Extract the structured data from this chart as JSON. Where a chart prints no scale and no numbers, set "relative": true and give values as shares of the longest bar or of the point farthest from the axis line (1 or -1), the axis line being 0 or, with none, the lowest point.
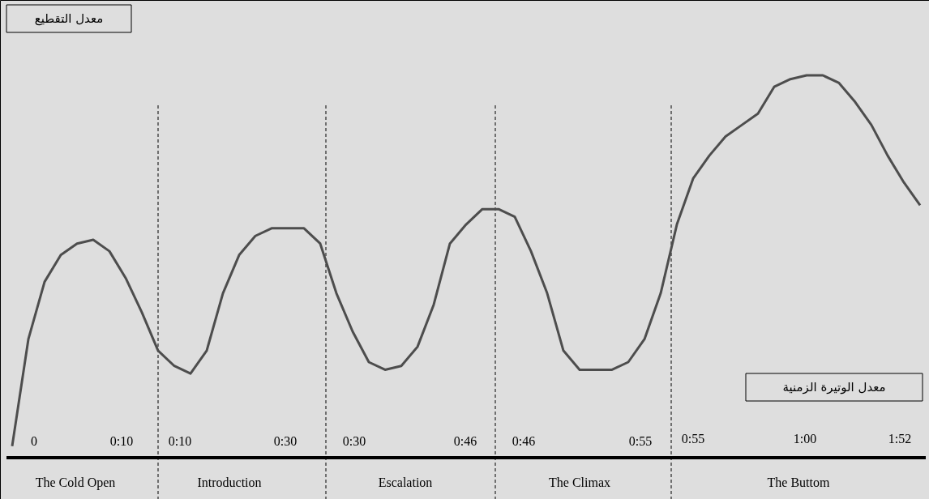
{
  "chart_data": {
    "type": "line",
    "relative": true,
    "marker": "none",
    "line_style": "solid",
    "categories": [
      null,
      null,
      null,
      null,
      null,
      null,
      null,
      null,
      null,
      null,
      null,
      null,
      null,
      null,
      null,
      null,
      null,
      null,
      null,
      null,
      null,
      null,
      null,
      null,
      null,
      null,
      null,
      null,
      null,
      null,
      null,
      null,
      null,
      null,
      null,
      null,
      null,
      null,
      null,
      null,
      null,
      null,
      null,
      null,
      null,
      null,
      null,
      null,
      null,
      null,
      null,
      null,
      null,
      null,
      null,
      null,
      null
    ],
    "series": [
      {
        "color": "#4d4d4d",
        "values": [
          0.03,
          0.31,
          0.46,
          0.53,
          0.56,
          0.57,
          0.54,
          0.47,
          0.38,
          0.28,
          0.24,
          0.22,
          0.28,
          0.43,
          0.53,
          0.58,
          0.6,
          0.6,
          0.6,
          0.56,
          0.43,
          0.33,
          0.25,
          0.23,
          0.24,
          0.29,
          0.4,
          0.56,
          0.61,
          0.65,
          0.65,
          0.63,
          0.54,
          0.43,
          0.28,
          0.23,
          0.23,
          0.23,
          0.25,
          0.31,
          0.43,
          0.61,
          0.73,
          0.79,
          0.84,
          0.87,
          0.9,
          0.97,
          0.99,
          1.0,
          1.0,
          0.98,
          0.93,
          0.87,
          0.79,
          0.72,
          0.66
        ]
      }
    ],
    "annotations": [
      "معدل التقطيع",
      "معدل الوتيرة الزمنية",
      "0",
      "0:10",
      "The Cold Open",
      "0:10",
      "0:30",
      "Introduction",
      "0:30",
      "0:46",
      "Escalation",
      "0:46",
      "0:55",
      "The Climax",
      "0:55",
      "1:00",
      "1:52",
      "The Buttom"
    ]
  }
}
